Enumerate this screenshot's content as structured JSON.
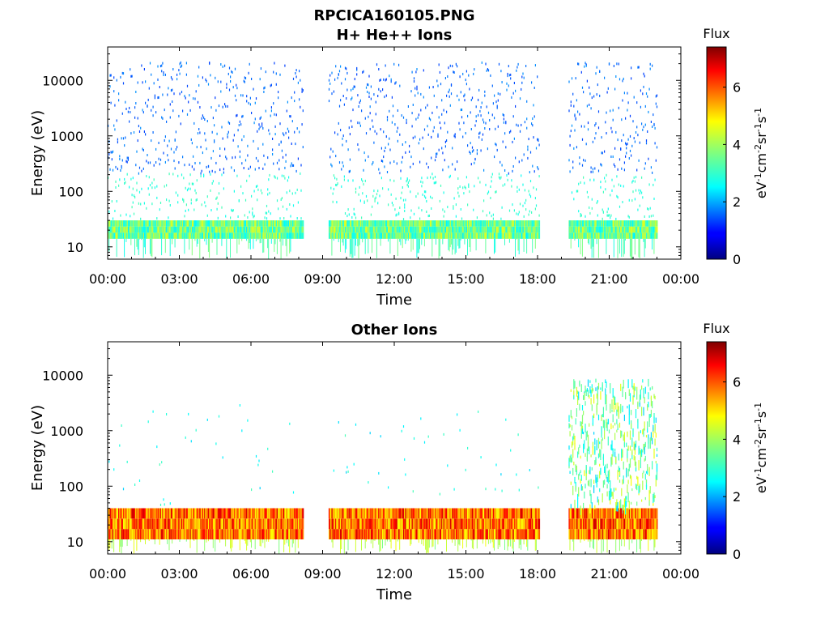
{
  "figure_title": "RPCICA160105.PNG",
  "chart_data": [
    {
      "type": "heatmap",
      "title": "H+ He++ Ions",
      "xlabel": "Time",
      "ylabel": "Energy (eV)",
      "x_ticks": [
        "00:00",
        "03:00",
        "06:00",
        "09:00",
        "12:00",
        "15:00",
        "18:00",
        "21:00",
        "00:00"
      ],
      "xlim_hours": [
        0,
        24
      ],
      "y_scale": "log",
      "y_ticks": [
        "10",
        "100",
        "1000",
        "10000"
      ],
      "ylim": [
        6,
        40000
      ],
      "colorbar": {
        "title": "Flux",
        "label": "eV-1cm-2sr-1s-1",
        "ticks": [
          "0",
          "2",
          "4",
          "6"
        ],
        "range": [
          0,
          7.4
        ]
      },
      "coverage_hours": [
        [
          0,
          8.2
        ],
        [
          9.25,
          18.05
        ],
        [
          19.3,
          23.0
        ]
      ],
      "low_band_eV": [
        14,
        30
      ],
      "low_band_flux": 3.5,
      "sparse_flux": 1.2
    },
    {
      "type": "heatmap",
      "title": "Other Ions",
      "xlabel": "Time",
      "ylabel": "Energy (eV)",
      "x_ticks": [
        "00:00",
        "03:00",
        "06:00",
        "09:00",
        "12:00",
        "15:00",
        "18:00",
        "21:00",
        "00:00"
      ],
      "xlim_hours": [
        0,
        24
      ],
      "y_scale": "log",
      "y_ticks": [
        "10",
        "100",
        "1000",
        "10000"
      ],
      "ylim": [
        6,
        40000
      ],
      "colorbar": {
        "title": "Flux",
        "label": "eV-1cm-2sr-1s-1",
        "ticks": [
          "0",
          "2",
          "4",
          "6"
        ],
        "range": [
          0,
          7.4
        ]
      },
      "coverage_hours": [
        [
          0,
          8.2
        ],
        [
          9.25,
          18.05
        ],
        [
          19.3,
          23.0
        ]
      ],
      "low_band_eV": [
        11,
        40
      ],
      "low_band_flux": 5.8,
      "burst_hours": [
        19.3,
        23.0
      ],
      "burst_top_eV": 8000,
      "sparse_flux": 2.2
    }
  ]
}
